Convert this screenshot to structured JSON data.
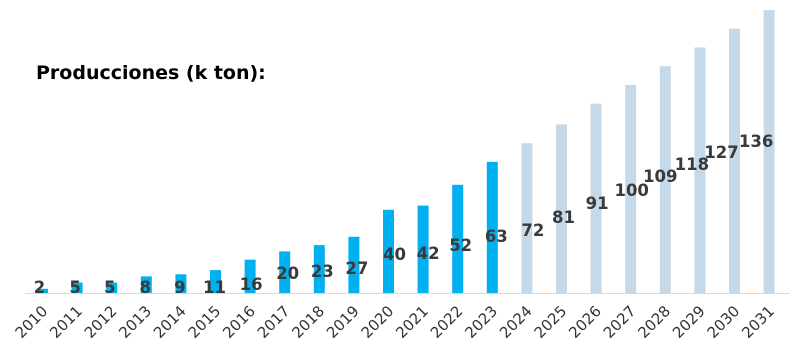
{
  "chart_data": {
    "type": "bar",
    "title": "Producciones (k ton):",
    "xlabel": "",
    "ylabel": "",
    "grid": false,
    "legend": "none",
    "categories": [
      "2010",
      "2011",
      "2012",
      "2013",
      "2014",
      "2015",
      "2016",
      "2017",
      "2018",
      "2019",
      "2020",
      "2021",
      "2022",
      "2023",
      "2024",
      "2025",
      "2026",
      "2027",
      "2028",
      "2029",
      "2030",
      "2031"
    ],
    "series": [
      {
        "values": [
          2,
          5,
          5,
          8,
          9,
          11,
          16,
          20,
          23,
          27,
          40,
          42,
          52,
          63,
          72,
          81,
          91,
          100,
          109,
          118,
          127,
          136
        ],
        "kind": [
          "actual",
          "actual",
          "actual",
          "actual",
          "actual",
          "actual",
          "actual",
          "actual",
          "actual",
          "actual",
          "actual",
          "actual",
          "actual",
          "actual",
          "forecast",
          "forecast",
          "forecast",
          "forecast",
          "forecast",
          "forecast",
          "forecast",
          "forecast"
        ]
      }
    ],
    "ylim": [
      0,
      136
    ],
    "colors": {
      "actual": "#00b0f0",
      "forecast": "#c5d9e8",
      "axis": "#d9d9d9"
    }
  }
}
